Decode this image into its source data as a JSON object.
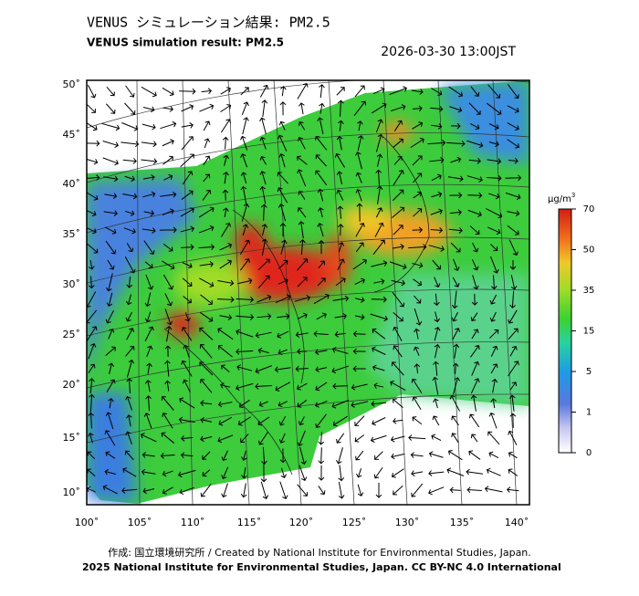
{
  "header": {
    "title": "VENUS シミュレーション結果: PM2.5",
    "subtitle": "VENUS simulation result: PM2.5",
    "timestamp": "2026-03-30 13:00JST"
  },
  "map": {
    "lat_labels": [
      "50˚",
      "45˚",
      "40˚",
      "35˚",
      "30˚",
      "25˚",
      "20˚",
      "15˚",
      "10˚"
    ],
    "lon_labels": [
      "100˚",
      "105˚",
      "110˚",
      "115˚",
      "120˚",
      "125˚",
      "130˚",
      "135˚",
      "140˚"
    ]
  },
  "colorbar": {
    "unit": "μg/m",
    "unit_sup": "3",
    "ticks": [
      70,
      50,
      35,
      15,
      5,
      1,
      0
    ]
  },
  "footer": {
    "credit": "作成: 国立環境研究所 / Created by National Institute for Environmental Studies, Japan.",
    "copyright": "2025 National Institute for Environmental Studies, Japan. CC BY-NC 4.0 International"
  }
}
